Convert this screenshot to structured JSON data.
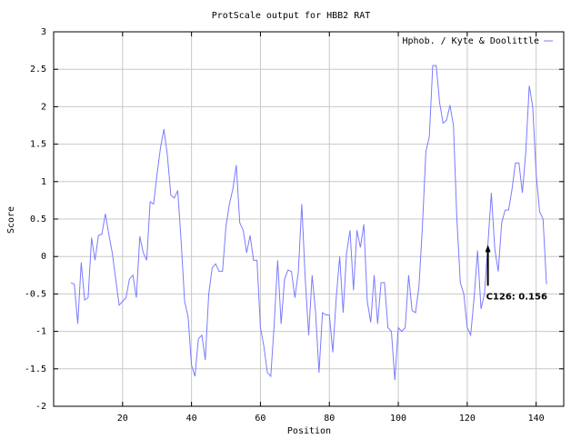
{
  "chart_data": {
    "type": "line",
    "title": "ProtScale output for HBB2 RAT",
    "xlabel": "Position",
    "ylabel": "Score",
    "xlim": [
      0,
      148
    ],
    "ylim": [
      -2,
      3
    ],
    "xticks": [
      20,
      40,
      60,
      80,
      100,
      120,
      140
    ],
    "yticks": [
      -2,
      -1.5,
      -1,
      -0.5,
      0,
      0.5,
      1,
      1.5,
      2,
      2.5,
      3
    ],
    "grid": true,
    "legend": "upper right",
    "x": [
      5,
      6,
      7,
      8,
      9,
      10,
      11,
      12,
      13,
      14,
      15,
      16,
      17,
      18,
      19,
      20,
      21,
      22,
      23,
      24,
      25,
      26,
      27,
      28,
      29,
      30,
      31,
      32,
      33,
      34,
      35,
      36,
      37,
      38,
      39,
      40,
      41,
      42,
      43,
      44,
      45,
      46,
      47,
      48,
      49,
      50,
      51,
      52,
      53,
      54,
      55,
      56,
      57,
      58,
      59,
      60,
      61,
      62,
      63,
      64,
      65,
      66,
      67,
      68,
      69,
      70,
      71,
      72,
      73,
      74,
      75,
      76,
      77,
      78,
      79,
      80,
      81,
      82,
      83,
      84,
      85,
      86,
      87,
      88,
      89,
      90,
      91,
      92,
      93,
      94,
      95,
      96,
      97,
      98,
      99,
      100,
      101,
      102,
      103,
      104,
      105,
      106,
      107,
      108,
      109,
      110,
      111,
      112,
      113,
      114,
      115,
      116,
      117,
      118,
      119,
      120,
      121,
      122,
      123,
      124,
      125,
      126,
      127,
      128,
      129,
      130,
      131,
      132,
      133,
      134,
      135,
      136,
      137,
      138,
      139,
      140,
      141,
      142,
      143
    ],
    "series": [
      {
        "name": "Hphob. / Kyte & Doolittle",
        "color": "#7b7bff",
        "values": [
          -0.35,
          -0.37,
          -0.9,
          -0.08,
          -0.58,
          -0.55,
          0.25,
          -0.05,
          0.28,
          0.3,
          0.57,
          0.3,
          0.05,
          -0.3,
          -0.65,
          -0.6,
          -0.55,
          -0.3,
          -0.25,
          -0.55,
          0.27,
          0.05,
          -0.05,
          0.73,
          0.7,
          1.1,
          1.45,
          1.7,
          1.35,
          0.82,
          0.78,
          0.88,
          0.2,
          -0.6,
          -0.8,
          -1.45,
          -1.6,
          -1.1,
          -1.05,
          -1.38,
          -0.5,
          -0.15,
          -0.1,
          -0.2,
          -0.2,
          0.4,
          0.7,
          0.9,
          1.22,
          0.45,
          0.35,
          0.05,
          0.28,
          -0.05,
          -0.05,
          -0.95,
          -1.2,
          -1.55,
          -1.6,
          -0.9,
          -0.05,
          -0.9,
          -0.3,
          -0.18,
          -0.2,
          -0.55,
          -0.2,
          0.7,
          -0.3,
          -1.05,
          -0.25,
          -0.75,
          -1.55,
          -0.75,
          -0.78,
          -0.78,
          -1.28,
          -0.55,
          0.0,
          -0.75,
          0.05,
          0.35,
          -0.45,
          0.35,
          0.12,
          0.43,
          -0.6,
          -0.88,
          -0.25,
          -0.9,
          -0.35,
          -0.35,
          -0.95,
          -1.0,
          -1.65,
          -0.95,
          -1.0,
          -0.95,
          -0.25,
          -0.72,
          -0.75,
          -0.4,
          0.4,
          1.4,
          1.6,
          2.55,
          2.55,
          2.05,
          1.78,
          1.82,
          2.02,
          1.75,
          0.5,
          -0.35,
          -0.5,
          -0.95,
          -1.05,
          -0.55,
          0.08,
          -0.7,
          -0.5,
          0.16,
          0.85,
          0.1,
          -0.2,
          0.45,
          0.62,
          0.62,
          0.9,
          1.25,
          1.25,
          0.85,
          1.4,
          2.28,
          2.0,
          1.1,
          0.6,
          0.5,
          -0.37
        ]
      }
    ],
    "annotations": [
      {
        "text": "C126: 0.156",
        "x": 126,
        "y": 0.156
      }
    ]
  }
}
